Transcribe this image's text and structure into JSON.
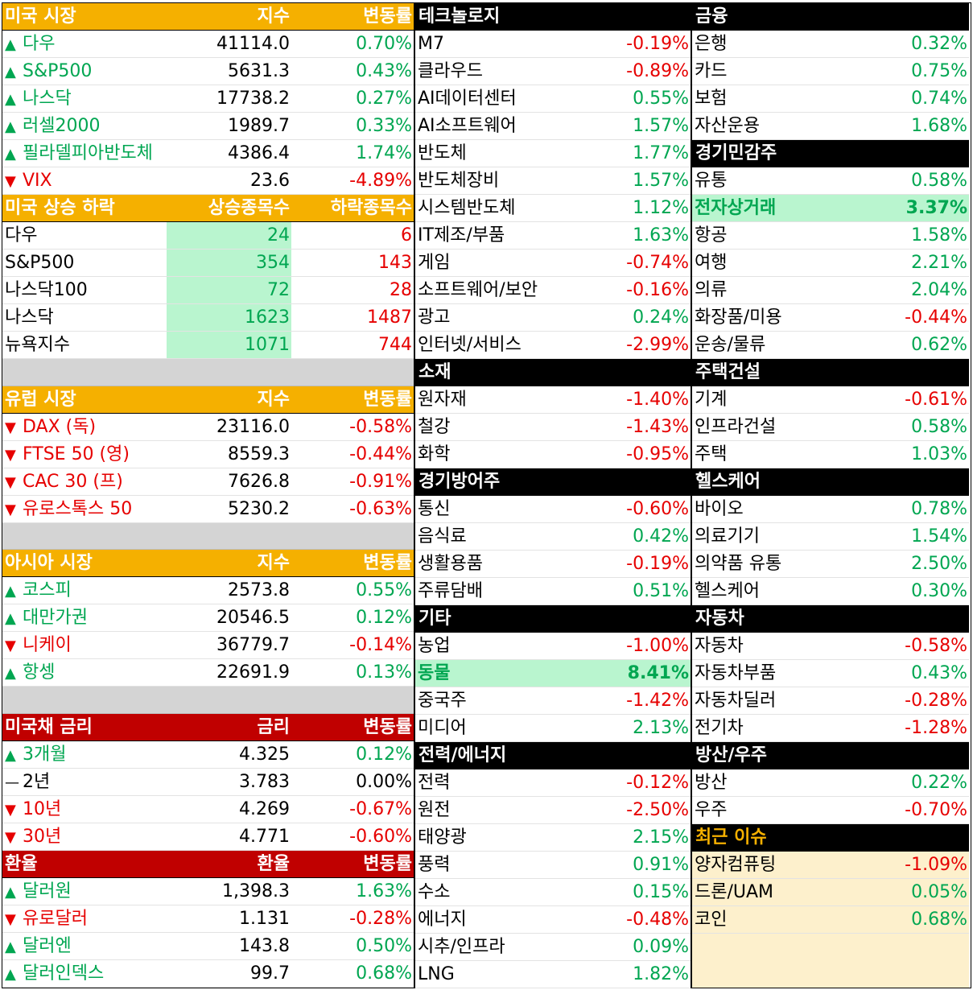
{
  "colors": {
    "up": "#00a651",
    "down": "#e60000",
    "orange_header": "#f5b000",
    "red_header": "#c00000",
    "highlight": "#b9f5cf",
    "issue_bg": "#fdf0cc"
  },
  "us_market": {
    "header": {
      "name": "미국 시장",
      "value": "지수",
      "change": "변동률"
    },
    "rows": [
      {
        "arrow": "▲",
        "dir": "up",
        "name": "다우",
        "value": "41114.0",
        "change": "0.70%"
      },
      {
        "arrow": "▲",
        "dir": "up",
        "name": "S&P500",
        "value": "5631.3",
        "change": "0.43%"
      },
      {
        "arrow": "▲",
        "dir": "up",
        "name": "나스닥",
        "value": "17738.2",
        "change": "0.27%"
      },
      {
        "arrow": "▲",
        "dir": "up",
        "name": "러셀2000",
        "value": "1989.7",
        "change": "0.33%"
      },
      {
        "arrow": "▲",
        "dir": "up",
        "name": "필라델피아반도체",
        "value": "4386.4",
        "change": "1.74%"
      },
      {
        "arrow": "▼",
        "dir": "down",
        "name": "VIX",
        "value": "23.6",
        "change": "-4.89%"
      }
    ]
  },
  "us_breadth": {
    "header": {
      "name": "미국 상승 하락",
      "up": "상승종목수",
      "down": "하락종목수"
    },
    "rows": [
      {
        "name": "다우",
        "up": "24",
        "down": "6"
      },
      {
        "name": "S&P500",
        "up": "354",
        "down": "143"
      },
      {
        "name": "나스닥100",
        "up": "72",
        "down": "28"
      },
      {
        "name": "나스닥",
        "up": "1623",
        "down": "1487"
      },
      {
        "name": "뉴욕지수",
        "up": "1071",
        "down": "744"
      }
    ]
  },
  "europe_market": {
    "header": {
      "name": "유럽 시장",
      "value": "지수",
      "change": "변동률"
    },
    "rows": [
      {
        "arrow": "▼",
        "dir": "down",
        "name": "DAX (독)",
        "value": "23116.0",
        "change": "-0.58%"
      },
      {
        "arrow": "▼",
        "dir": "down",
        "name": "FTSE 50 (영)",
        "value": "8559.3",
        "change": "-0.44%"
      },
      {
        "arrow": "▼",
        "dir": "down",
        "name": "CAC 30 (프)",
        "value": "7626.8",
        "change": "-0.91%"
      },
      {
        "arrow": "▼",
        "dir": "down",
        "name": "유로스톡스 50",
        "value": "5230.2",
        "change": "-0.63%"
      }
    ]
  },
  "asia_market": {
    "header": {
      "name": "아시아 시장",
      "value": "지수",
      "change": "변동률"
    },
    "rows": [
      {
        "arrow": "▲",
        "dir": "up",
        "name": "코스피",
        "value": "2573.8",
        "change": "0.55%"
      },
      {
        "arrow": "▲",
        "dir": "up",
        "name": "대만가권",
        "value": "20546.5",
        "change": "0.12%"
      },
      {
        "arrow": "▼",
        "dir": "down",
        "name": "니케이",
        "value": "36779.7",
        "change": "-0.14%"
      },
      {
        "arrow": "▲",
        "dir": "up",
        "name": "항셍",
        "value": "22691.9",
        "change": "0.13%"
      }
    ]
  },
  "us_treasury": {
    "header": {
      "name": "미국채 금리",
      "value": "금리",
      "change": "변동률"
    },
    "rows": [
      {
        "arrow": "▲",
        "dir": "up",
        "name": "3개월",
        "value": "4.325",
        "change": "0.12%"
      },
      {
        "arrow": "—",
        "dir": "flat",
        "name": "2년",
        "value": "3.783",
        "change": "0.00%"
      },
      {
        "arrow": "▼",
        "dir": "down",
        "name": "10년",
        "value": "4.269",
        "change": "-0.67%"
      },
      {
        "arrow": "▼",
        "dir": "down",
        "name": "30년",
        "value": "4.771",
        "change": "-0.60%"
      }
    ]
  },
  "fx": {
    "header": {
      "name": "환율",
      "value": "환율",
      "change": "변동률"
    },
    "rows": [
      {
        "arrow": "▲",
        "dir": "up",
        "name": "달러원",
        "value": "1,398.3",
        "change": "1.63%"
      },
      {
        "arrow": "▼",
        "dir": "down",
        "name": "유로달러",
        "value": "1.131",
        "change": "-0.28%"
      },
      {
        "arrow": "▲",
        "dir": "up",
        "name": "달러엔",
        "value": "143.8",
        "change": "0.50%"
      },
      {
        "arrow": "▲",
        "dir": "up",
        "name": "달러인덱스",
        "value": "99.7",
        "change": "0.68%"
      }
    ]
  },
  "sectors_mid": [
    {
      "title": "테크놀로지",
      "rows": [
        {
          "name": "M7",
          "change": "-0.19%",
          "dir": "down"
        },
        {
          "name": "클라우드",
          "change": "-0.89%",
          "dir": "down"
        },
        {
          "name": "AI데이터센터",
          "change": "0.55%",
          "dir": "up"
        },
        {
          "name": "AI소프트웨어",
          "change": "1.57%",
          "dir": "up"
        },
        {
          "name": "반도체",
          "change": "1.77%",
          "dir": "up"
        },
        {
          "name": "반도체장비",
          "change": "1.57%",
          "dir": "up"
        },
        {
          "name": "시스템반도체",
          "change": "1.12%",
          "dir": "up"
        },
        {
          "name": "IT제조/부품",
          "change": "1.63%",
          "dir": "up"
        },
        {
          "name": "게임",
          "change": "-0.74%",
          "dir": "down"
        },
        {
          "name": "소프트웨어/보안",
          "change": "-0.16%",
          "dir": "down"
        },
        {
          "name": "광고",
          "change": "0.24%",
          "dir": "up"
        },
        {
          "name": "인터넷/서비스",
          "change": "-2.99%",
          "dir": "down"
        }
      ]
    },
    {
      "title": "소재",
      "rows": [
        {
          "name": "원자재",
          "change": "-1.40%",
          "dir": "down"
        },
        {
          "name": "철강",
          "change": "-1.43%",
          "dir": "down"
        },
        {
          "name": "화학",
          "change": "-0.95%",
          "dir": "down"
        }
      ]
    },
    {
      "title": "경기방어주",
      "rows": [
        {
          "name": "통신",
          "change": "-0.60%",
          "dir": "down"
        },
        {
          "name": "음식료",
          "change": "0.42%",
          "dir": "up"
        },
        {
          "name": "생활용품",
          "change": "-0.19%",
          "dir": "down"
        },
        {
          "name": "주류담배",
          "change": "0.51%",
          "dir": "up"
        }
      ]
    },
    {
      "title": "기타",
      "rows": [
        {
          "name": "농업",
          "change": "-1.00%",
          "dir": "down"
        },
        {
          "name": "동물",
          "change": "8.41%",
          "dir": "up",
          "highlight": true
        },
        {
          "name": "중국주",
          "change": "-1.42%",
          "dir": "down"
        },
        {
          "name": "미디어",
          "change": "2.13%",
          "dir": "up"
        }
      ]
    },
    {
      "title": "전력/에너지",
      "rows": [
        {
          "name": "전력",
          "change": "-0.12%",
          "dir": "down"
        },
        {
          "name": "원전",
          "change": "-2.50%",
          "dir": "down"
        },
        {
          "name": "태양광",
          "change": "2.15%",
          "dir": "up"
        },
        {
          "name": "풍력",
          "change": "0.91%",
          "dir": "up"
        },
        {
          "name": "수소",
          "change": "0.15%",
          "dir": "up"
        },
        {
          "name": "에너지",
          "change": "-0.48%",
          "dir": "down"
        },
        {
          "name": "시추/인프라",
          "change": "0.09%",
          "dir": "up"
        },
        {
          "name": "LNG",
          "change": "1.82%",
          "dir": "up"
        }
      ]
    }
  ],
  "sectors_right": [
    {
      "title": "금융",
      "rows": [
        {
          "name": "은행",
          "change": "0.32%",
          "dir": "up"
        },
        {
          "name": "카드",
          "change": "0.75%",
          "dir": "up"
        },
        {
          "name": "보험",
          "change": "0.74%",
          "dir": "up"
        },
        {
          "name": "자산운용",
          "change": "1.68%",
          "dir": "up"
        }
      ]
    },
    {
      "title": "경기민감주",
      "rows": [
        {
          "name": "유통",
          "change": "0.58%",
          "dir": "up"
        },
        {
          "name": "전자상거래",
          "change": "3.37%",
          "dir": "up",
          "highlight": true
        },
        {
          "name": "항공",
          "change": "1.58%",
          "dir": "up"
        },
        {
          "name": "여행",
          "change": "2.21%",
          "dir": "up"
        },
        {
          "name": "의류",
          "change": "2.04%",
          "dir": "up"
        },
        {
          "name": "화장품/미용",
          "change": "-0.44%",
          "dir": "down"
        },
        {
          "name": "운송/물류",
          "change": "0.62%",
          "dir": "up"
        }
      ]
    },
    {
      "title": "주택건설",
      "rows": [
        {
          "name": "기계",
          "change": "-0.61%",
          "dir": "down"
        },
        {
          "name": "인프라건설",
          "change": "0.58%",
          "dir": "up"
        },
        {
          "name": "주택",
          "change": "1.03%",
          "dir": "up"
        }
      ]
    },
    {
      "title": "헬스케어",
      "rows": [
        {
          "name": "바이오",
          "change": "0.78%",
          "dir": "up"
        },
        {
          "name": "의료기기",
          "change": "1.54%",
          "dir": "up"
        },
        {
          "name": "의약품 유통",
          "change": "2.50%",
          "dir": "up"
        },
        {
          "name": "헬스케어",
          "change": "0.30%",
          "dir": "up"
        }
      ]
    },
    {
      "title": "자동차",
      "rows": [
        {
          "name": "자동차",
          "change": "-0.58%",
          "dir": "down"
        },
        {
          "name": "자동차부품",
          "change": "0.43%",
          "dir": "up"
        },
        {
          "name": "자동차딜러",
          "change": "-0.28%",
          "dir": "down"
        },
        {
          "name": "전기차",
          "change": "-1.28%",
          "dir": "down"
        }
      ]
    },
    {
      "title": "방산/우주",
      "rows": [
        {
          "name": "방산",
          "change": "0.22%",
          "dir": "up"
        },
        {
          "name": "우주",
          "change": "-0.70%",
          "dir": "down"
        }
      ]
    },
    {
      "title": "최근 이슈",
      "issue": true,
      "rows": [
        {
          "name": "양자컴퓨팅",
          "change": "-1.09%",
          "dir": "down"
        },
        {
          "name": "드론/UAM",
          "change": "0.05%",
          "dir": "up"
        },
        {
          "name": "코인",
          "change": "0.68%",
          "dir": "up"
        }
      ]
    }
  ]
}
